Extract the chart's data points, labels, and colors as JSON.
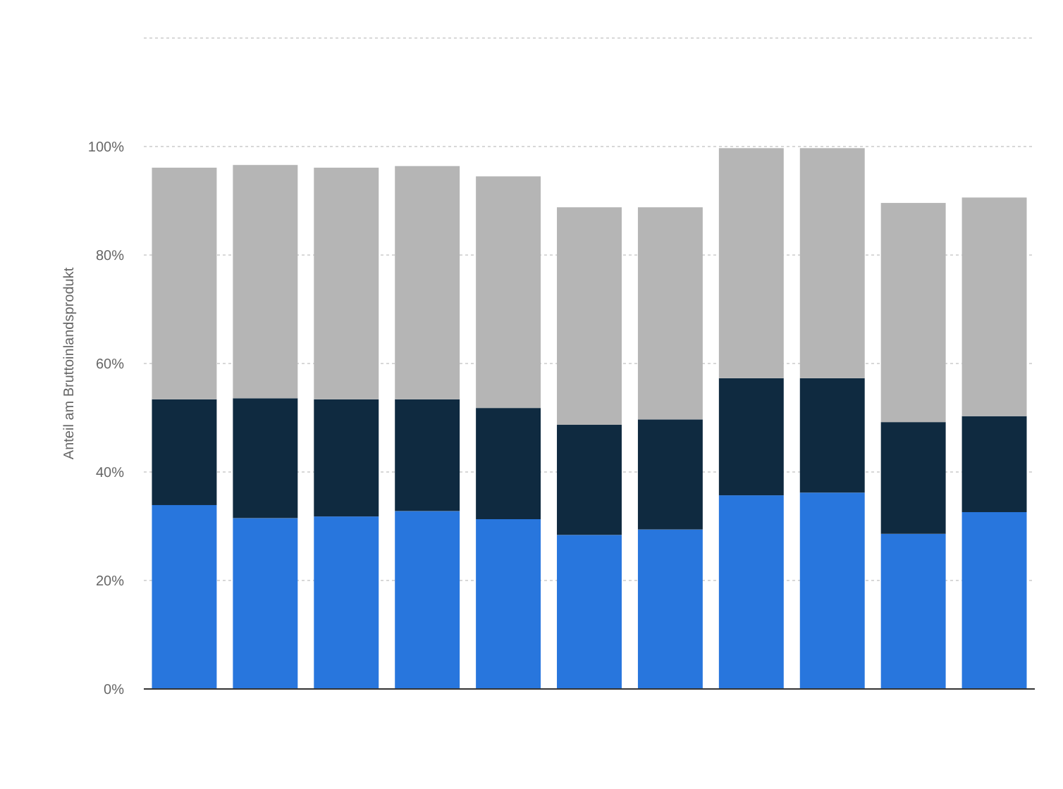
{
  "chart_data": {
    "type": "bar",
    "ylabel": "Anteil am Bruttoinlandsprodukt",
    "stacked": true,
    "categories": [
      null,
      null,
      null,
      null,
      null,
      null,
      null,
      null,
      null,
      null,
      null
    ],
    "series": [
      {
        "color": "#2876dd",
        "values": [
          33.9,
          31.5,
          31.8,
          32.8,
          31.3,
          28.4,
          29.4,
          35.7,
          36.2,
          28.6,
          32.6
        ]
      },
      {
        "color": "#0f2a40",
        "values": [
          19.5,
          22.1,
          21.6,
          20.6,
          20.5,
          20.3,
          20.3,
          21.6,
          21.1,
          20.6,
          17.7
        ]
      },
      {
        "color": "#b5b5b5",
        "values": [
          42.7,
          43.0,
          42.7,
          43.0,
          42.7,
          40.1,
          39.1,
          42.4,
          42.4,
          40.4,
          40.3
        ]
      }
    ],
    "ylim": [
      0,
      120
    ],
    "yticks": [
      {
        "value": 0,
        "label": "0%"
      },
      {
        "value": 20,
        "label": "20%"
      },
      {
        "value": 40,
        "label": "40%"
      },
      {
        "value": 60,
        "label": "60%"
      },
      {
        "value": 80,
        "label": "80%"
      },
      {
        "value": 100,
        "label": "100%"
      },
      {
        "value": 120,
        "label": null
      }
    ],
    "grid": "y"
  }
}
